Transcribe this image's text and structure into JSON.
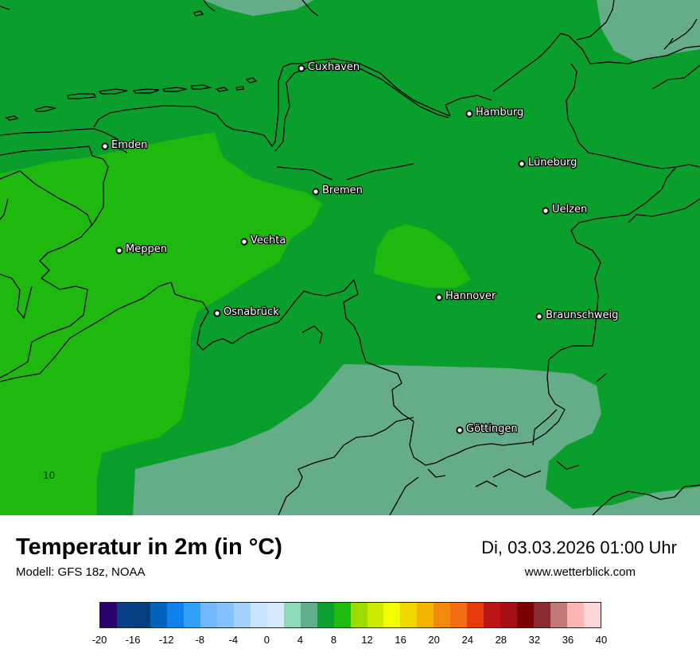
{
  "header": {
    "title": "Temperatur in 2m (in °C)",
    "model": "Modell: GFS 18z, NOAA",
    "datetime": "Di, 03.03.2026 01:00 Uhr",
    "website": "www.wetterblick.com"
  },
  "map": {
    "contour_label": "10",
    "cities": [
      {
        "name": "Cuxhaven"
      },
      {
        "name": "Hamburg"
      },
      {
        "name": "Emden"
      },
      {
        "name": "Lüneburg"
      },
      {
        "name": "Bremen"
      },
      {
        "name": "Uelzen"
      },
      {
        "name": "Vechta"
      },
      {
        "name": "Meppen"
      },
      {
        "name": "Hannover"
      },
      {
        "name": "Osnabrück"
      },
      {
        "name": "Braunschweig"
      },
      {
        "name": "Göttingen"
      }
    ],
    "fill_colors": {
      "range_4_6": "#64ad88",
      "range_6_8": "#0a9e2c",
      "range_8_10": "#1eb80f",
      "border": "#000000"
    }
  },
  "legend": {
    "ticks": [
      "-20",
      "-16",
      "-12",
      "-8",
      "-4",
      "0",
      "4",
      "8",
      "12",
      "16",
      "20",
      "24",
      "28",
      "32",
      "36",
      "40"
    ],
    "colors": [
      "#2a006e",
      "#083e86",
      "#053f7f",
      "#0164bb",
      "#0e82ea",
      "#31a0fb",
      "#72b8fd",
      "#84c1ff",
      "#a3d2fd",
      "#c7e3fe",
      "#d6e8fd",
      "#8ed9b7",
      "#63ae8a",
      "#0c9e2f",
      "#1ebc0e",
      "#9ddb01",
      "#cdea01",
      "#f3fc00",
      "#f1d600",
      "#f1b502",
      "#f38a0b",
      "#f46d15",
      "#e63a0c",
      "#bd1515",
      "#a50f15",
      "#7a0000",
      "#8c2a32",
      "#c37878",
      "#fbb5b5",
      "#fdd6d9"
    ]
  }
}
